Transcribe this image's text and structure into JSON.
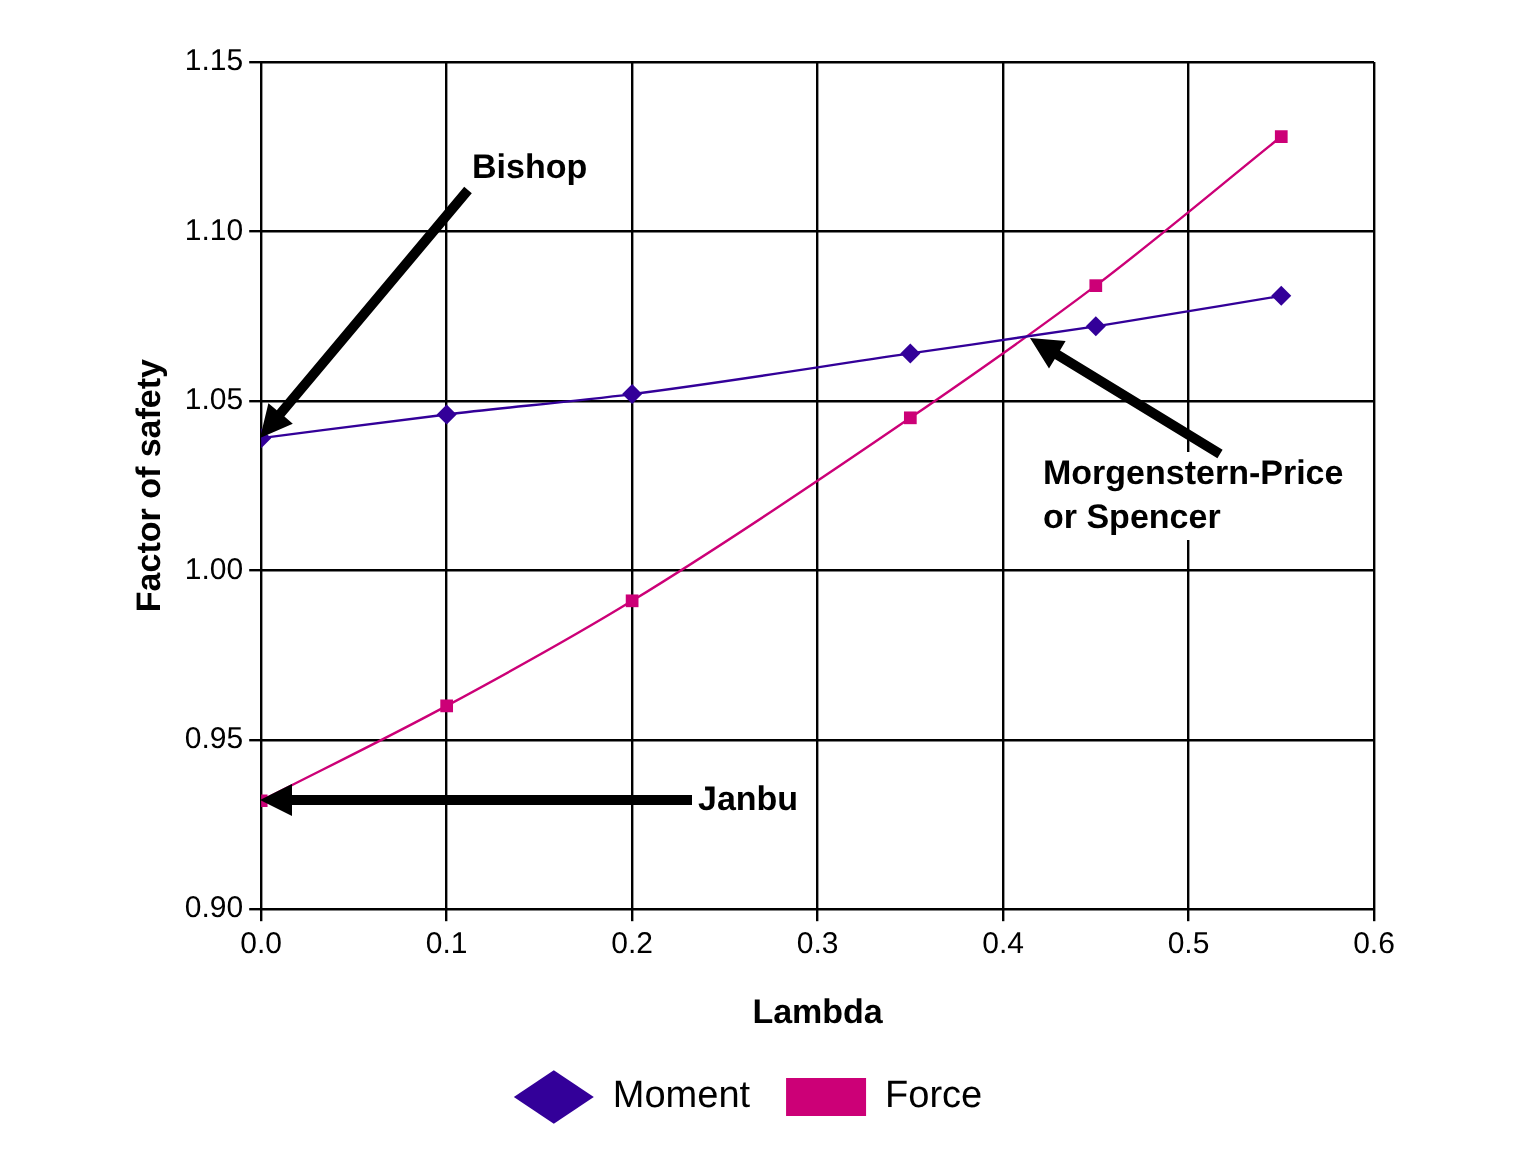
{
  "chart_data": {
    "type": "line",
    "xlabel": "Lambda",
    "ylabel": "Factor of safety",
    "series": [
      {
        "name": "Moment",
        "color": "#330099",
        "marker": "diamond",
        "x": [
          0,
          0.1,
          0.2,
          0.35,
          0.45,
          0.55
        ],
        "values": [
          1.039,
          1.046,
          1.052,
          1.064,
          1.072,
          1.081
        ]
      },
      {
        "name": "Force",
        "color": "#cc0077",
        "marker": "square",
        "x": [
          0,
          0.1,
          0.2,
          0.35,
          0.45,
          0.55
        ],
        "values": [
          0.932,
          0.96,
          0.991,
          1.045,
          1.084,
          1.128
        ]
      }
    ],
    "xlim": [
      0,
      0.6
    ],
    "xticks": [
      {
        "value": 0,
        "label": "0.0"
      },
      0.1,
      0.2,
      0.3,
      0.4,
      0.5,
      0.6
    ],
    "ylim": [
      0.9,
      1.15
    ],
    "yticks": [
      {
        "value": 0.9,
        "label": "0.90"
      },
      0.95,
      {
        "value": 1,
        "label": "1.00"
      },
      1.05,
      {
        "value": 1.1,
        "label": "1.10"
      },
      1.15
    ],
    "grid": true,
    "legend": "bottom",
    "line_style": "solid",
    "annotations": [
      "Bishop",
      "Morgenstern-Price\nor Spencer",
      "Janbu"
    ]
  }
}
